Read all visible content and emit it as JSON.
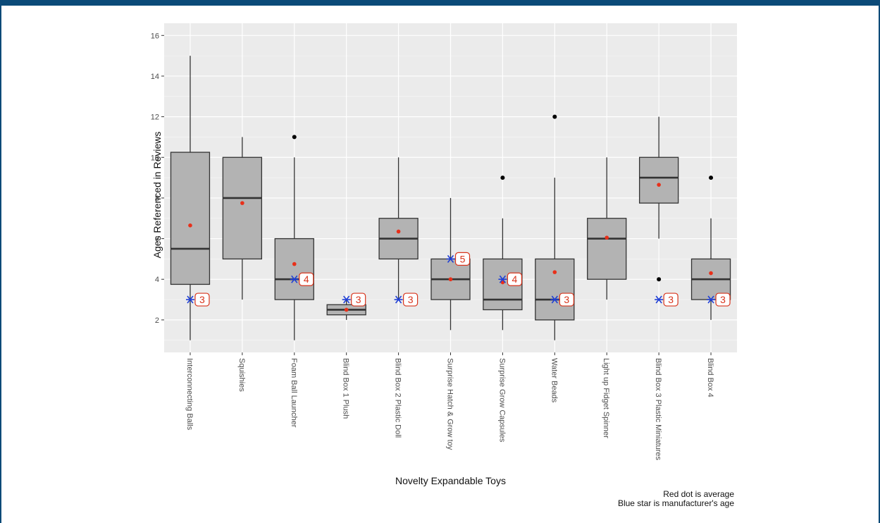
{
  "chart_data": {
    "type": "box",
    "title": "",
    "xlabel": "Novelty Expandable Toys",
    "ylabel": "Ages Referenced in Reviews",
    "ylim": [
      0.4,
      16.6
    ],
    "yticks": [
      2,
      4,
      6,
      8,
      10,
      12,
      14,
      16
    ],
    "grid": true,
    "categories": [
      "Interconnecting Balls",
      "Squishies",
      "Foam Ball Launcher",
      "Blind Box 1 Plush",
      "Blind Box 2 Plastic Doll",
      "Surprise Hatch & Grow toy",
      "Surprise Grow Capsules",
      "Water Beads",
      "Light up Fidget Spinner",
      "Blind Box 3 Plastic Miniatures",
      "Blind Box 4"
    ],
    "boxes": [
      {
        "min": 1,
        "q1": 3.75,
        "median": 5.5,
        "q3": 10.25,
        "max": 15,
        "outliers": [],
        "mean": 6.65,
        "manufacturer_age": 3,
        "label": "3"
      },
      {
        "min": 3,
        "q1": 5,
        "median": 8,
        "q3": 10,
        "max": 11,
        "outliers": [],
        "mean": 7.75,
        "manufacturer_age": null,
        "label": ""
      },
      {
        "min": 1,
        "q1": 3,
        "median": 4,
        "q3": 6,
        "max": 10,
        "outliers": [
          11
        ],
        "mean": 4.75,
        "manufacturer_age": 4,
        "label": "4"
      },
      {
        "min": 2,
        "q1": 2.25,
        "median": 2.5,
        "q3": 2.75,
        "max": 3,
        "outliers": [],
        "mean": 2.5,
        "manufacturer_age": 3,
        "label": "3"
      },
      {
        "min": 3,
        "q1": 5,
        "median": 6,
        "q3": 7,
        "max": 10,
        "outliers": [],
        "mean": 6.35,
        "manufacturer_age": 3,
        "label": "3"
      },
      {
        "min": 1.5,
        "q1": 3,
        "median": 4,
        "q3": 5,
        "max": 8,
        "outliers": [],
        "mean": 4,
        "manufacturer_age": 5,
        "label": "5"
      },
      {
        "min": 1.5,
        "q1": 2.5,
        "median": 3,
        "q3": 5,
        "max": 7,
        "outliers": [
          9
        ],
        "mean": 3.85,
        "manufacturer_age": 4,
        "label": "4"
      },
      {
        "min": 1,
        "q1": 2,
        "median": 3,
        "q3": 5,
        "max": 9,
        "outliers": [
          12
        ],
        "mean": 4.35,
        "manufacturer_age": 3,
        "label": "3"
      },
      {
        "min": 3,
        "q1": 4,
        "median": 6,
        "q3": 7,
        "max": 10,
        "outliers": [],
        "mean": 6.05,
        "manufacturer_age": null,
        "label": ""
      },
      {
        "min": 6,
        "q1": 7.75,
        "median": 9,
        "q3": 10,
        "max": 12,
        "outliers": [
          4
        ],
        "mean": 8.65,
        "manufacturer_age": 3,
        "label": "3"
      },
      {
        "min": 2,
        "q1": 3,
        "median": 4,
        "q3": 5,
        "max": 7,
        "outliers": [
          9
        ],
        "mean": 4.3,
        "manufacturer_age": 3,
        "label": "3"
      }
    ],
    "annotations": [
      "Red dot is average",
      "Blue star is manufacturer's age"
    ],
    "colors": {
      "panel": "#ebebeb",
      "grid": "#ffffff",
      "box_fill": "#b3b3b3",
      "box_line": "#333333",
      "mean_dot": "#e8301a",
      "star": "#1f3fd6",
      "label_border": "#d8341c",
      "frame": "#0b4a78"
    }
  }
}
